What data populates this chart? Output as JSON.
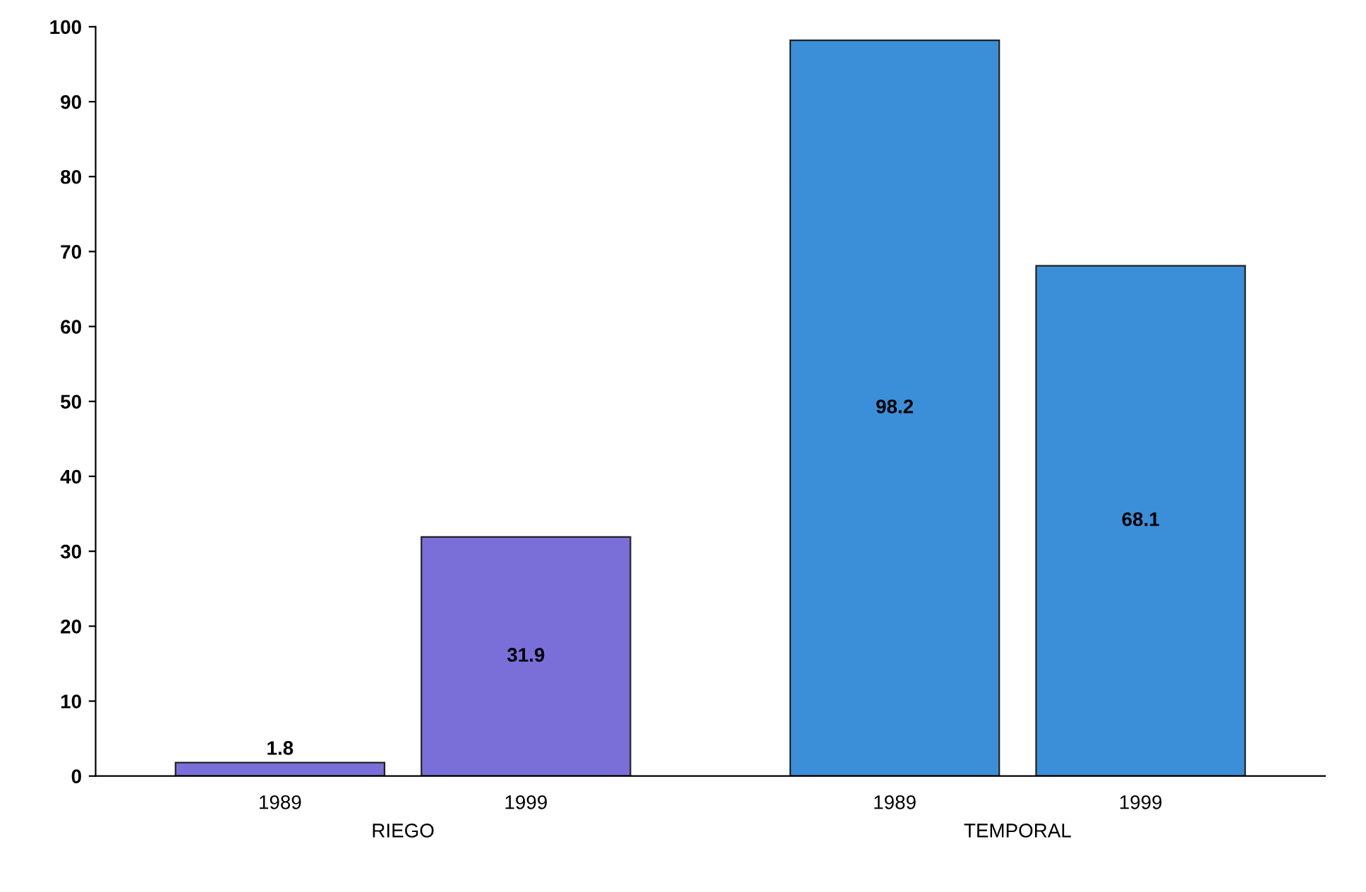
{
  "chart_data": {
    "type": "bar",
    "categories": [
      "RIEGO",
      "TEMPORAL"
    ],
    "series": [
      {
        "name": "1989",
        "colors": [
          "#7a6fd8",
          "#3b8fd9"
        ],
        "values": [
          1.8,
          98.2
        ]
      },
      {
        "name": "1999",
        "colors": [
          "#7a6fd8",
          "#3b8fd9"
        ],
        "values": [
          31.9,
          68.1
        ]
      }
    ],
    "ylim": [
      0,
      100
    ],
    "yticks": [
      0,
      10,
      20,
      30,
      40,
      50,
      60,
      70,
      80,
      90,
      100
    ],
    "grid": false,
    "data_labels": true
  }
}
